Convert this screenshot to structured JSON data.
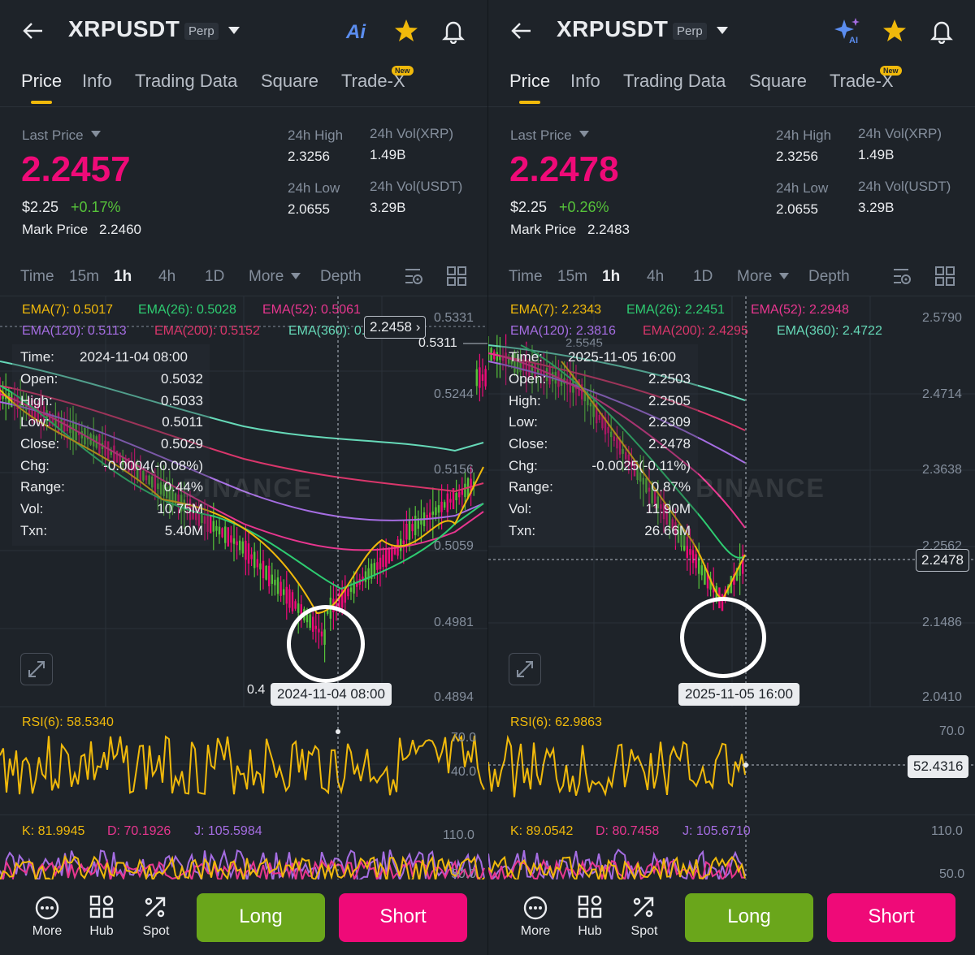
{
  "panels": [
    {
      "id": "left",
      "header": {
        "symbol": "XRPUSDT",
        "badge": "Perp"
      },
      "tabs": [
        "Price",
        "Info",
        "Trading Data",
        "Square",
        "Trade-X"
      ],
      "new_badge": "New",
      "ticker": {
        "last_price_label": "Last Price",
        "last_price": "2.2457",
        "usd_price": "$2.25",
        "change": "+0.17%",
        "mark_label": "Mark Price",
        "mark_price": "2.2460",
        "high_label": "24h High",
        "high": "2.3256",
        "low_label": "24h Low",
        "low": "2.0655",
        "vol_coin_label": "24h Vol(XRP)",
        "vol_coin": "1.49B",
        "vol_usdt_label": "24h Vol(USDT)",
        "vol_usdt": "3.29B"
      },
      "timeframes": [
        "Time",
        "15m",
        "1h",
        "4h",
        "1D",
        "More",
        "Depth"
      ],
      "ema": {
        "ema7": "EMA(7): 0.5017",
        "ema26": "EMA(26): 0.5028",
        "ema52": "EMA(52): 0.5061",
        "ema120": "EMA(120): 0.5113",
        "ema200": "EMA(200): 0.5152",
        "ema360": "EMA(360): 0.5214"
      },
      "tooltip": {
        "time_label": "Time:",
        "time": "2024-11-04 08:00",
        "open_label": "Open:",
        "open": "0.5032",
        "high_label": "High:",
        "high": "0.5033",
        "low_label": "Low:",
        "low": "0.5011",
        "close_label": "Close:",
        "close": "0.5029",
        "chg_label": "Chg:",
        "chg": "-0.0004(-0.08%)",
        "range_label": "Range:",
        "range": "0.44%",
        "vol_label": "Vol:",
        "vol": "10.75M",
        "txn_label": "Txn:",
        "txn": "5.40M"
      },
      "price_axis": [
        "0.5331",
        "0.5311",
        "0.5244",
        "0.5156",
        "0.5059",
        "0.4981",
        "0.4894"
      ],
      "floating_price": "2.2458",
      "floating_price_arrow": "›",
      "peak_label": "0.5311",
      "low_marker": "0.4",
      "time_pill": "2024-11-04 08:00",
      "watermark": "BINANCE",
      "rsi": {
        "label": "RSI(6): 58.5340",
        "axis_top": "70.0",
        "axis_mid": "40.0"
      },
      "kdj": {
        "k": "K: 81.9945",
        "d": "D: 70.1926",
        "j": "J: 105.5984",
        "axis_top": "110.0",
        "axis_bottom": "50.0"
      },
      "bottom": {
        "more": "More",
        "hub": "Hub",
        "spot": "Spot",
        "long": "Long",
        "short": "Short"
      }
    },
    {
      "id": "right",
      "header": {
        "symbol": "XRPUSDT",
        "badge": "Perp"
      },
      "tabs": [
        "Price",
        "Info",
        "Trading Data",
        "Square",
        "Trade-X"
      ],
      "new_badge": "New",
      "ticker": {
        "last_price_label": "Last Price",
        "last_price": "2.2478",
        "usd_price": "$2.25",
        "change": "+0.26%",
        "mark_label": "Mark Price",
        "mark_price": "2.2483",
        "high_label": "24h High",
        "high": "2.3256",
        "low_label": "24h Low",
        "low": "2.0655",
        "vol_coin_label": "24h Vol(XRP)",
        "vol_coin": "1.49B",
        "vol_usdt_label": "24h Vol(USDT)",
        "vol_usdt": "3.29B"
      },
      "timeframes": [
        "Time",
        "15m",
        "1h",
        "4h",
        "1D",
        "More",
        "Depth"
      ],
      "ema": {
        "ema7": "EMA(7): 2.2343",
        "ema26": "EMA(26): 2.2451",
        "ema52": "EMA(52): 2.2948",
        "ema120": "EMA(120): 2.3816",
        "ema200": "EMA(200): 2.4295",
        "ema360": "EMA(360): 2.4722"
      },
      "tooltip": {
        "time_label": "Time:",
        "time": "2025-11-05 16:00",
        "open_label": "Open:",
        "open": "2.2503",
        "high_label": "High:",
        "high": "2.2505",
        "low_label": "Low:",
        "low": "2.2309",
        "close_label": "Close:",
        "close": "2.2478",
        "chg_label": "Chg:",
        "chg": "-0.0025(-0.11%)",
        "range_label": "Range:",
        "range": "0.87%",
        "vol_label": "Vol:",
        "vol": "11.90M",
        "txn_label": "Txn:",
        "txn": "26.66M"
      },
      "price_axis": [
        "2.5790",
        "2.4714",
        "2.3638",
        "2.2562",
        "2.1486",
        "2.0410"
      ],
      "floating_price": "2.2478",
      "peak_label": "2.5545",
      "time_pill": "2025-11-05 16:00",
      "watermark": "BINANCE",
      "rsi": {
        "label": "RSI(6): 62.9863",
        "axis_top": "70.0",
        "crosshair_value": "52.4316"
      },
      "kdj": {
        "k": "K: 89.0542",
        "d": "D: 80.7458",
        "j": "J: 105.6710",
        "axis_top": "110.0",
        "axis_bottom": "50.0"
      },
      "bottom": {
        "more": "More",
        "hub": "Hub",
        "spot": "Spot",
        "long": "Long",
        "short": "Short"
      }
    }
  ],
  "colors": {
    "accent": "#f0b90b",
    "up": "#56c33a",
    "down": "#ef0a78",
    "ema7": "#f0b90b",
    "ema26": "#2ecc71",
    "ema52": "#e8368f",
    "ema120": "#a56de2",
    "ema200": "#d9366b",
    "ema360": "#66d9b8"
  }
}
